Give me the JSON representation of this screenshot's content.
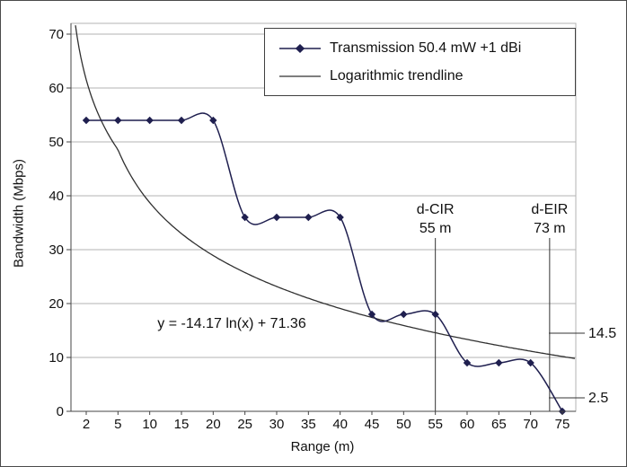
{
  "chart_data": {
    "type": "line",
    "title": "",
    "xlabel": "Range (m)",
    "ylabel": "Bandwidth (Mbps)",
    "categories": [
      2,
      5,
      10,
      15,
      20,
      25,
      30,
      35,
      40,
      45,
      50,
      55,
      60,
      65,
      70,
      75
    ],
    "x_tick_labels": [
      "2",
      "5",
      "10",
      "15",
      "20",
      "25",
      "30",
      "35",
      "40",
      "45",
      "50",
      "55",
      "60",
      "65",
      "70",
      "75"
    ],
    "yticks": [
      0,
      10,
      20,
      30,
      40,
      50,
      60,
      70
    ],
    "ylim": [
      0,
      72
    ],
    "grid": "horizontal",
    "series": [
      {
        "name": "Transmission 50.4 mW +1 dBi",
        "marker": "diamond",
        "smooth": true,
        "color": "#1f1f4f",
        "values": [
          54,
          54,
          54,
          54,
          54,
          36,
          36,
          36,
          36,
          18,
          18,
          18,
          9,
          9,
          9,
          0
        ]
      }
    ],
    "trendline": {
      "name": "Logarithmic trendline",
      "kind": "logarithmic",
      "a": 71.36,
      "b": -14.17,
      "equation": "y = -14.17 ln(x) + 71.36",
      "color": "#303030"
    },
    "legend_position": "top-right",
    "annotations": {
      "vlines": [
        {
          "x_m": 55,
          "lines": [
            "d-CIR",
            "55 m"
          ]
        },
        {
          "x_m": 73,
          "lines": [
            "d-EIR",
            "73 m"
          ]
        }
      ],
      "equation_label": "y = -14.17 ln(x) + 71.36",
      "right_ticks": [
        {
          "value": 14.5,
          "label": "14.5"
        },
        {
          "value": 2.5,
          "label": "2.5"
        }
      ]
    }
  }
}
